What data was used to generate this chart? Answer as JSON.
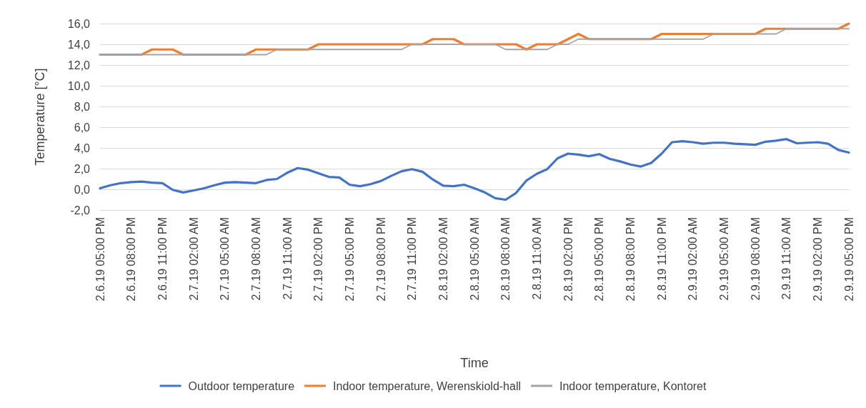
{
  "chart_data": {
    "type": "line",
    "xlabel": "Time",
    "ylabel": "Temperature [°C]",
    "categories": [
      "2.6.19 05:00 PM",
      null,
      null,
      "2.6.19 08:00 PM",
      null,
      null,
      "2.6.19 11:00 PM",
      null,
      null,
      "2.7.19 02:00 AM",
      null,
      null,
      "2.7.19 05:00 AM",
      null,
      null,
      "2.7.19 08:00 AM",
      null,
      null,
      "2.7.19 11:00 AM",
      null,
      null,
      "2.7.19 02:00 PM",
      null,
      null,
      "2.7.19 05:00 PM",
      null,
      null,
      "2.7.19 08:00 PM",
      null,
      null,
      "2.7.19 11:00 PM",
      null,
      null,
      "2.8.19 02:00 AM",
      null,
      null,
      "2.8.19 05:00 AM",
      null,
      null,
      "2.8.19 08:00 AM",
      null,
      null,
      "2.8.19 11:00 AM",
      null,
      null,
      "2.8.19 02:00 PM",
      null,
      null,
      "2.8.19 05:00 PM",
      null,
      null,
      "2.8.19 08:00 PM",
      null,
      null,
      "2.8.19 11:00 PM",
      null,
      null,
      "2.9.19 02:00 AM",
      null,
      null,
      "2.9.19 05:00 AM",
      null,
      null,
      "2.9.19 08:00 AM",
      null,
      null,
      "2.9.19 11:00 AM",
      null,
      null,
      "2.9.19 02:00 PM",
      null,
      null,
      "2.9.19 05:00 PM"
    ],
    "series": [
      {
        "name": "Outdoor temperature",
        "color": "#4472c4",
        "values": [
          0.1,
          0.4,
          0.6,
          0.7,
          0.75,
          0.65,
          0.6,
          -0.05,
          -0.3,
          -0.1,
          0.1,
          0.4,
          0.65,
          0.7,
          0.65,
          0.6,
          0.9,
          1.0,
          1.6,
          2.05,
          1.9,
          1.55,
          1.2,
          1.15,
          0.45,
          0.3,
          0.5,
          0.8,
          1.3,
          1.75,
          1.95,
          1.7,
          0.95,
          0.35,
          0.3,
          0.45,
          0.1,
          -0.3,
          -0.85,
          -1.0,
          -0.35,
          0.85,
          1.5,
          1.95,
          3.0,
          3.45,
          3.35,
          3.2,
          3.4,
          2.95,
          2.7,
          2.4,
          2.2,
          2.55,
          3.45,
          4.55,
          4.65,
          4.55,
          4.4,
          4.5,
          4.5,
          4.4,
          4.35,
          4.3,
          4.6,
          4.7,
          4.85,
          4.45,
          4.5,
          4.55,
          4.4,
          3.8,
          3.55
        ]
      },
      {
        "name": "Indoor temperature, Werenskiold-hall",
        "color": "#ed7d31",
        "values": [
          13,
          13,
          13,
          13,
          13,
          13.5,
          13.5,
          13.5,
          13,
          13,
          13,
          13,
          13,
          13,
          13,
          13.5,
          13.5,
          13.5,
          13.5,
          13.5,
          13.5,
          14,
          14,
          14,
          14,
          14,
          14,
          14,
          14,
          14,
          14,
          14,
          14.5,
          14.5,
          14.5,
          14,
          14,
          14,
          14,
          14,
          14,
          13.5,
          14,
          14,
          14,
          14.5,
          15,
          14.5,
          14.5,
          14.5,
          14.5,
          14.5,
          14.5,
          14.5,
          15,
          15,
          15,
          15,
          15,
          15,
          15,
          15,
          15,
          15,
          15.5,
          15.5,
          15.5,
          15.5,
          15.5,
          15.5,
          15.5,
          15.5,
          16
        ]
      },
      {
        "name": "Indoor temperature, Kontoret",
        "color": "#a5a5a5",
        "values": [
          13,
          13,
          13,
          13,
          13,
          13,
          13,
          13,
          13,
          13,
          13,
          13,
          13,
          13,
          13,
          13,
          13,
          13.5,
          13.5,
          13.5,
          13.5,
          13.5,
          13.5,
          13.5,
          13.5,
          13.5,
          13.5,
          13.5,
          13.5,
          13.5,
          14,
          14,
          14,
          14,
          14,
          14,
          14,
          14,
          14,
          13.5,
          13.5,
          13.5,
          13.5,
          13.5,
          14,
          14,
          14.5,
          14.5,
          14.5,
          14.5,
          14.5,
          14.5,
          14.5,
          14.5,
          14.5,
          14.5,
          14.5,
          14.5,
          14.5,
          15,
          15,
          15,
          15,
          15,
          15,
          15,
          15.5,
          15.5,
          15.5,
          15.5,
          15.5,
          15.5,
          15.5
        ]
      }
    ],
    "ylim": [
      -2,
      16
    ],
    "yticks": [
      {
        "value": -2,
        "label": "-2,0"
      },
      {
        "value": 0,
        "label": "0,0"
      },
      {
        "value": 2,
        "label": "2,0"
      },
      {
        "value": 4,
        "label": "4,0"
      },
      {
        "value": 6,
        "label": "6,0"
      },
      {
        "value": 8,
        "label": "8,0"
      },
      {
        "value": 10,
        "label": "10,0"
      },
      {
        "value": 12,
        "label": "12,0"
      },
      {
        "value": 14,
        "label": "14,0"
      },
      {
        "value": 16,
        "label": "16,0"
      }
    ],
    "grid": "y",
    "legend": "bottom",
    "marker": "none",
    "line_style": "solid"
  }
}
